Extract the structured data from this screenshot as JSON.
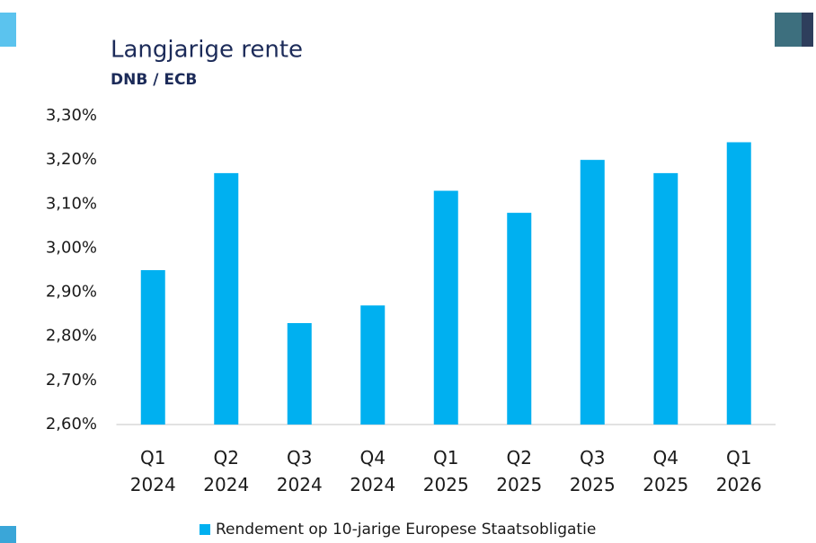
{
  "chart_data": {
    "type": "bar",
    "title": "Langjarige rente",
    "subtitle": "DNB / ECB",
    "categories": [
      "Q1 2024",
      "Q2 2024",
      "Q3 2024",
      "Q4 2024",
      "Q1 2025",
      "Q2 2025",
      "Q3 2025",
      "Q4 2025",
      "Q1 2026"
    ],
    "series": [
      {
        "name": "Rendement op 10-jarige Europese Staatsobligatie",
        "color": "#00b0f0",
        "values": [
          2.95,
          3.17,
          2.83,
          2.87,
          3.13,
          3.08,
          3.2,
          3.17,
          3.24
        ]
      }
    ],
    "ylim": [
      2.6,
      3.3
    ],
    "yticks": [
      {
        "value": 2.6,
        "label": "2,60%"
      },
      {
        "value": 2.7,
        "label": "2,70%"
      },
      {
        "value": 2.8,
        "label": "2,80%"
      },
      {
        "value": 2.9,
        "label": "2,90%"
      },
      {
        "value": 3.0,
        "label": "3,00%"
      },
      {
        "value": 3.1,
        "label": "3,10%"
      },
      {
        "value": 3.2,
        "label": "3,20%"
      },
      {
        "value": 3.3,
        "label": "3,30%"
      }
    ],
    "grid": false,
    "legend": "bottom"
  }
}
